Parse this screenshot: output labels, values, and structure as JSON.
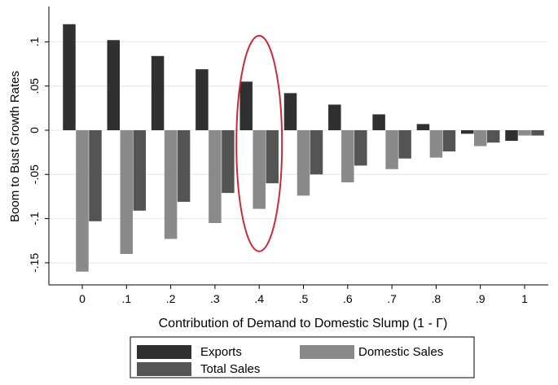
{
  "chart_data": {
    "type": "bar",
    "title": "",
    "xlabel": "Contribution of Demand to Domestic Slump (1 - Γ)",
    "ylabel": "Boom to Bust Growth Rates",
    "categories": [
      "0",
      ".1",
      ".2",
      ".3",
      ".4",
      ".5",
      ".6",
      ".7",
      ".8",
      ".9",
      "1"
    ],
    "y_ticks": [
      {
        "value": 0.1,
        "label": ".1"
      },
      {
        "value": 0.05,
        "label": ".05"
      },
      {
        "value": 0,
        "label": "0"
      },
      {
        "value": -0.05,
        "label": "-.05"
      },
      {
        "value": -0.1,
        "label": "-.1"
      },
      {
        "value": -0.15,
        "label": "-.15"
      }
    ],
    "ylim": [
      -0.175,
      0.14
    ],
    "grid": true,
    "legend_position": "bottom",
    "series": [
      {
        "name": "Exports",
        "color": "#303030",
        "values": [
          0.12,
          0.102,
          0.084,
          0.069,
          0.055,
          0.042,
          0.029,
          0.018,
          0.007,
          -0.004,
          -0.012
        ]
      },
      {
        "name": "Domestic Sales",
        "color": "#8a8a8a",
        "values": [
          -0.16,
          -0.14,
          -0.123,
          -0.105,
          -0.089,
          -0.074,
          -0.059,
          -0.044,
          -0.031,
          -0.018,
          -0.006
        ]
      },
      {
        "name": "Total Sales",
        "color": "#545454",
        "values": [
          -0.103,
          -0.091,
          -0.081,
          -0.071,
          -0.06,
          -0.05,
          -0.04,
          -0.032,
          -0.024,
          -0.014,
          -0.006
        ]
      }
    ],
    "highlight": {
      "category": ".4",
      "shape": "ellipse",
      "color": "#cc2a3a"
    }
  }
}
